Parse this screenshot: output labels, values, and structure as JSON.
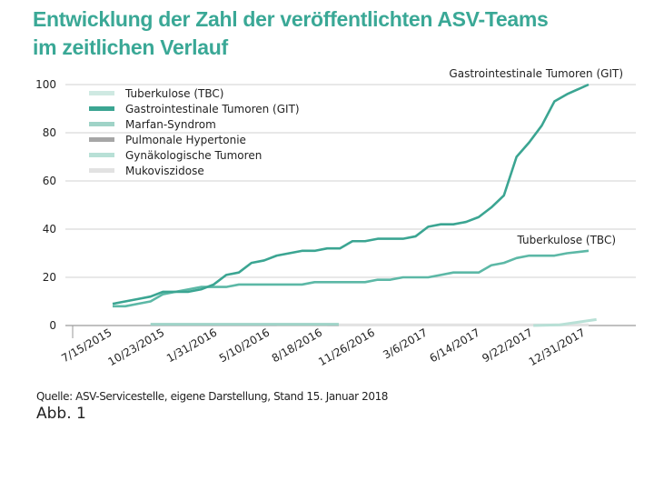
{
  "title_lines": [
    "Entwicklung der Zahl der veröffentlichten ASV-Teams",
    "im zeitlichen Verlauf"
  ],
  "source": "Quelle: ASV-Servicestelle, eigene Darstellung, Stand 15. Januar 2018",
  "figure_label": "Abb. 1",
  "chart_data": {
    "type": "line",
    "title": "Entwicklung der Zahl der veröffentlichten ASV-Teams im zeitlichen Verlauf",
    "xlabel": "",
    "ylabel": "",
    "x_unit": "days since 7/15/2015",
    "xlim": [
      -40,
      960
    ],
    "ylim": [
      0,
      100
    ],
    "y_ticks": [
      0,
      20,
      40,
      60,
      80,
      100
    ],
    "x_ticks": [
      {
        "day": 0,
        "label": "7/15/2015"
      },
      {
        "day": 100,
        "label": "10/23/2015"
      },
      {
        "day": 200,
        "label": "1/31/2016"
      },
      {
        "day": 300,
        "label": "5/10/2016"
      },
      {
        "day": 400,
        "label": "8/18/2016"
      },
      {
        "day": 500,
        "label": "11/26/2016"
      },
      {
        "day": 600,
        "label": "3/6/2017"
      },
      {
        "day": 700,
        "label": "6/14/2017"
      },
      {
        "day": 800,
        "label": "9/22/2017"
      },
      {
        "day": 900,
        "label": "12/31/2017"
      }
    ],
    "grid": true,
    "legend_position": "top-left",
    "series": [
      {
        "name": "Tuberkulose (TBC)",
        "color": "#5cb8a6",
        "legend_color": "#cfe9e2",
        "end_label": "Tuberkulose (TBC)",
        "x": [
          0,
          24,
          48,
          72,
          96,
          120,
          144,
          168,
          192,
          216,
          240,
          264,
          288,
          312,
          336,
          360,
          384,
          408,
          432,
          456,
          480,
          504,
          528,
          552,
          576,
          600,
          624,
          648,
          672,
          696,
          720,
          744,
          768,
          792,
          816,
          840,
          864,
          905
        ],
        "y": [
          8,
          8,
          9,
          10,
          13,
          14,
          15,
          16,
          16,
          16,
          17,
          17,
          17,
          17,
          17,
          17,
          18,
          18,
          18,
          18,
          18,
          19,
          19,
          20,
          20,
          20,
          21,
          22,
          22,
          22,
          25,
          26,
          28,
          29,
          29,
          29,
          30,
          31
        ]
      },
      {
        "name": "Gastrointestinale Tumoren (GIT)",
        "color": "#3ba592",
        "legend_color": "#3ba592",
        "end_label": "Gastrointestinale Tumoren (GIT)",
        "x": [
          0,
          24,
          48,
          72,
          96,
          120,
          144,
          168,
          192,
          216,
          240,
          264,
          288,
          312,
          336,
          360,
          384,
          408,
          432,
          456,
          480,
          504,
          528,
          552,
          576,
          600,
          624,
          648,
          672,
          696,
          720,
          744,
          768,
          792,
          816,
          840,
          864,
          905
        ],
        "y": [
          9,
          10,
          11,
          12,
          14,
          14,
          14,
          15,
          17,
          21,
          22,
          26,
          27,
          29,
          30,
          31,
          31,
          32,
          32,
          35,
          35,
          36,
          36,
          36,
          37,
          41,
          42,
          42,
          43,
          45,
          49,
          54,
          70,
          76,
          83,
          93,
          96,
          100
        ]
      },
      {
        "name": "Marfan-Syndrom",
        "color": "#9fd3c7",
        "legend_color": "#9fd3c7",
        "x": [
          72,
          430
        ],
        "y": [
          0.5,
          0.5
        ]
      },
      {
        "name": "Pulmonale Hypertonie",
        "color": "#a6a6a6",
        "legend_color": "#a6a6a6",
        "x": [
          312,
          408
        ],
        "y": [
          0.4,
          0.4
        ]
      },
      {
        "name": "Gynäkologische Tumoren",
        "color": "#b8e0d6",
        "legend_color": "#b8e0d6",
        "x": [
          800,
          850,
          920
        ],
        "y": [
          0,
          0.3,
          2.5
        ]
      },
      {
        "name": "Mukoviszidose",
        "color": "#e2e2e2",
        "legend_color": "#e2e2e2",
        "x": [
          430,
          905
        ],
        "y": [
          0.3,
          0.3
        ]
      }
    ]
  }
}
